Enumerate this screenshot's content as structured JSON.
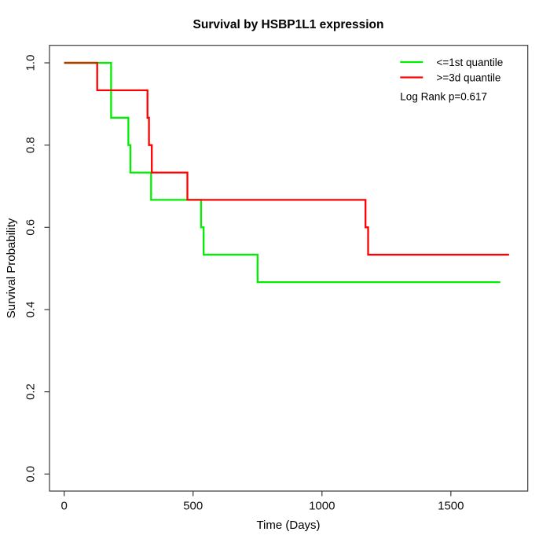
{
  "chart_data": {
    "type": "line",
    "chart_kind": "kaplan-meier-step",
    "title": "Survival by HSBP1L1 expression",
    "xlabel": "Time (Days)",
    "ylabel": "Survival Probability",
    "xlim": [
      0,
      1800
    ],
    "ylim": [
      0,
      1
    ],
    "xticks": [
      0,
      500,
      1000,
      1500
    ],
    "ytick_labels": [
      "0.0",
      "0.2",
      "0.4",
      "0.6",
      "0.8",
      "1.0"
    ],
    "ytick_values": [
      0,
      0.2,
      0.4,
      0.6,
      0.8,
      1.0
    ],
    "grid": false,
    "legend_position": "top-right",
    "annotation": "Log Rank p=0.617",
    "series": [
      {
        "name": "<=1st quantile",
        "color": "#00ee00",
        "steps": [
          [
            0,
            1.0
          ],
          [
            182,
            0.8667
          ],
          [
            249,
            0.8
          ],
          [
            257,
            0.7333
          ],
          [
            337,
            0.6667
          ],
          [
            531,
            0.6
          ],
          [
            541,
            0.5333
          ],
          [
            750,
            0.4667
          ]
        ],
        "end_time": 1692
      },
      {
        "name": ">=3d quantile",
        "color": "#ff0000",
        "steps": [
          [
            0,
            1.0
          ],
          [
            128,
            0.9333
          ],
          [
            323,
            0.8667
          ],
          [
            329,
            0.8
          ],
          [
            340,
            0.7333
          ],
          [
            478,
            0.6667
          ],
          [
            1169,
            0.6
          ],
          [
            1179,
            0.5333
          ]
        ],
        "end_time": 1726
      }
    ],
    "overlap_segment": {
      "from": 0,
      "to": 128,
      "level": 1.0,
      "color": "#b53a00"
    }
  }
}
